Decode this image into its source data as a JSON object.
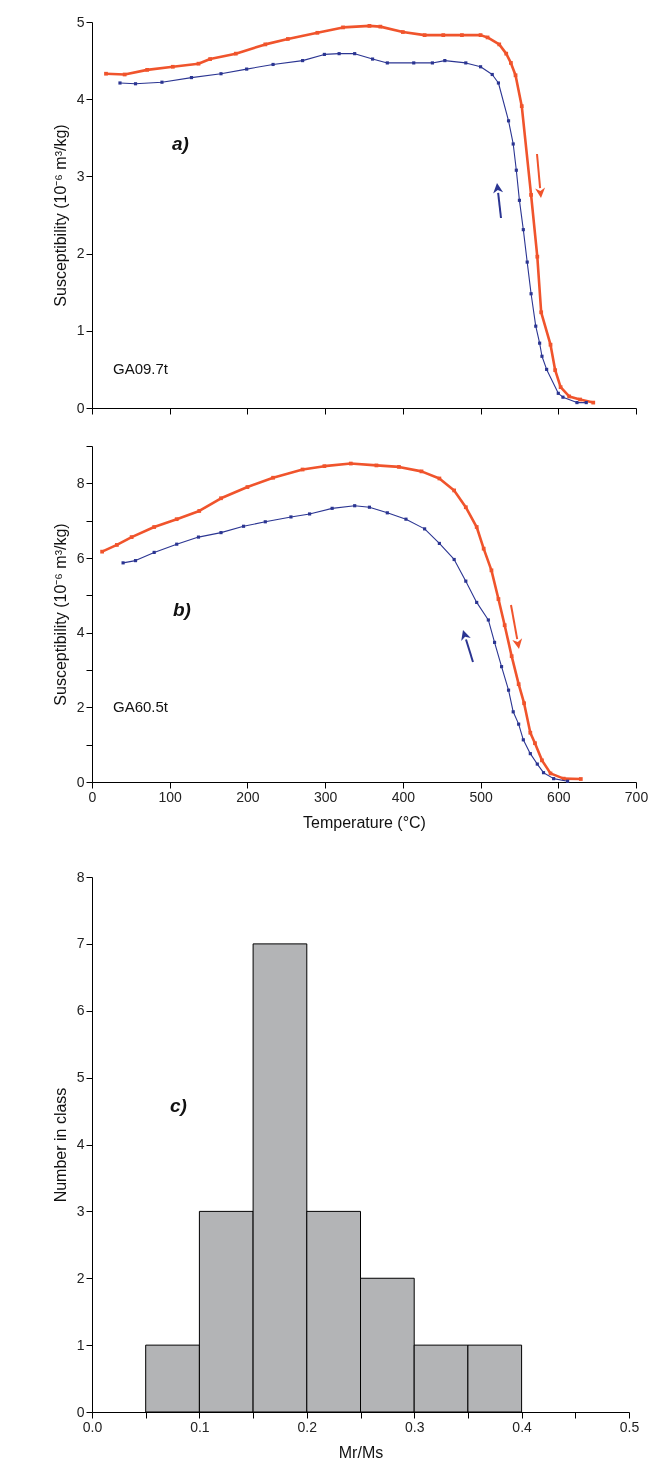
{
  "chart_data": [
    {
      "type": "line",
      "ylabel": "Susceptibility (10⁻⁶ m³/kg)",
      "xlim": [
        0,
        700
      ],
      "xticks": [
        0,
        100,
        200,
        300,
        400,
        500,
        600,
        700
      ],
      "ylim": [
        0,
        5
      ],
      "yticks": [
        0,
        1,
        2,
        3,
        4,
        5
      ],
      "tick_labels": "y",
      "marker": "square",
      "annotations": [
        "a)",
        "GA09.7t"
      ],
      "series": [
        {
          "color": "#f0542c",
          "x": [
            18,
            42,
            71,
            104,
            137,
            152,
            185,
            223,
            252,
            290,
            323,
            357,
            371,
            400,
            428,
            452,
            476,
            500,
            509,
            524,
            533,
            539,
            545,
            553,
            565,
            573,
            578,
            590,
            596,
            603,
            614,
            628,
            645
          ],
          "values": [
            4.33,
            4.32,
            4.38,
            4.42,
            4.46,
            4.52,
            4.59,
            4.71,
            4.78,
            4.86,
            4.93,
            4.95,
            4.94,
            4.87,
            4.83,
            4.83,
            4.83,
            4.83,
            4.8,
            4.71,
            4.59,
            4.47,
            4.31,
            3.91,
            2.76,
            1.96,
            1.24,
            0.82,
            0.49,
            0.27,
            0.15,
            0.11,
            0.07
          ]
        },
        {
          "color": "#2b3592",
          "x": [
            36,
            56,
            90,
            128,
            166,
            199,
            233,
            271,
            299,
            318,
            338,
            361,
            380,
            414,
            438,
            454,
            481,
            500,
            515,
            523,
            536,
            542,
            546,
            550,
            555,
            560,
            565,
            571,
            576,
            579,
            585,
            600,
            606,
            624,
            636
          ],
          "values": [
            4.21,
            4.2,
            4.22,
            4.28,
            4.33,
            4.39,
            4.45,
            4.5,
            4.58,
            4.59,
            4.59,
            4.52,
            4.47,
            4.47,
            4.47,
            4.5,
            4.47,
            4.42,
            4.32,
            4.21,
            3.72,
            3.42,
            3.08,
            2.69,
            2.31,
            1.89,
            1.48,
            1.06,
            0.84,
            0.67,
            0.5,
            0.19,
            0.14,
            0.07,
            0.07
          ]
        }
      ]
    },
    {
      "type": "line",
      "xlabel": "Temperature (°C)",
      "ylabel": "Susceptibility (10⁻⁶ m³/kg)",
      "xlim": [
        0,
        700
      ],
      "xticks": [
        0,
        100,
        200,
        300,
        400,
        500,
        600,
        700
      ],
      "ylim": [
        0,
        9
      ],
      "yticks": [
        0,
        {
          "value": 1,
          "label": null
        },
        2,
        {
          "value": 3,
          "label": null
        },
        4,
        {
          "value": 5,
          "label": null
        },
        6,
        {
          "value": 7,
          "label": null
        },
        8,
        {
          "value": 9,
          "label": null
        }
      ],
      "marker": "square",
      "annotations": [
        "b)",
        "GA60.5t"
      ],
      "series": [
        {
          "color": "#f0542c",
          "x": [
            13,
            32,
            51,
            80,
            109,
            138,
            166,
            200,
            233,
            271,
            299,
            333,
            366,
            395,
            424,
            447,
            466,
            481,
            495,
            504,
            514,
            523,
            531,
            540,
            549,
            556,
            564,
            570,
            579,
            590,
            607,
            629
          ],
          "values": [
            6.17,
            6.35,
            6.56,
            6.83,
            7.04,
            7.26,
            7.6,
            7.9,
            8.15,
            8.37,
            8.46,
            8.53,
            8.48,
            8.44,
            8.32,
            8.13,
            7.81,
            7.36,
            6.83,
            6.25,
            5.67,
            4.9,
            4.2,
            3.37,
            2.62,
            2.11,
            1.32,
            1.04,
            0.58,
            0.23,
            0.09,
            0.08
          ]
        },
        {
          "color": "#2b3592",
          "x": [
            40,
            56,
            80,
            109,
            137,
            166,
            195,
            223,
            256,
            280,
            309,
            338,
            357,
            380,
            404,
            428,
            447,
            466,
            481,
            495,
            510,
            518,
            527,
            536,
            542,
            549,
            555,
            564,
            573,
            581,
            594,
            612
          ],
          "values": [
            5.87,
            5.93,
            6.15,
            6.37,
            6.56,
            6.68,
            6.85,
            6.97,
            7.1,
            7.18,
            7.33,
            7.4,
            7.36,
            7.21,
            7.04,
            6.78,
            6.39,
            5.96,
            5.38,
            4.81,
            4.34,
            3.74,
            3.09,
            2.46,
            1.88,
            1.55,
            1.13,
            0.76,
            0.48,
            0.25,
            0.09,
            0.02
          ]
        }
      ]
    },
    {
      "type": "histogram",
      "xlabel": "Mr/Ms",
      "ylabel": "Number in class",
      "color": "#b3b4b6",
      "bins": [
        0.05,
        0.1,
        0.15,
        0.2,
        0.25,
        0.3,
        0.35,
        0.4
      ],
      "values": [
        1,
        3,
        7,
        3,
        2,
        1,
        1
      ],
      "xlim": [
        0,
        0.5
      ],
      "xticks": [
        {
          "value": 0,
          "label": "0.0"
        },
        {
          "value": 0.05,
          "label": null
        },
        {
          "value": 0.1,
          "label": "0.1"
        },
        {
          "value": 0.15,
          "label": null
        },
        {
          "value": 0.2,
          "label": "0.2"
        },
        {
          "value": 0.25,
          "label": null
        },
        {
          "value": 0.3,
          "label": "0.3"
        },
        {
          "value": 0.35,
          "label": null
        },
        {
          "value": 0.4,
          "label": "0.4"
        },
        {
          "value": 0.45,
          "label": null
        },
        {
          "value": 0.5,
          "label": "0.5"
        }
      ],
      "ylim": [
        0,
        8
      ],
      "yticks": [
        0,
        1,
        2,
        3,
        4,
        5,
        6,
        7,
        8
      ],
      "annotations": [
        "c)"
      ]
    }
  ]
}
